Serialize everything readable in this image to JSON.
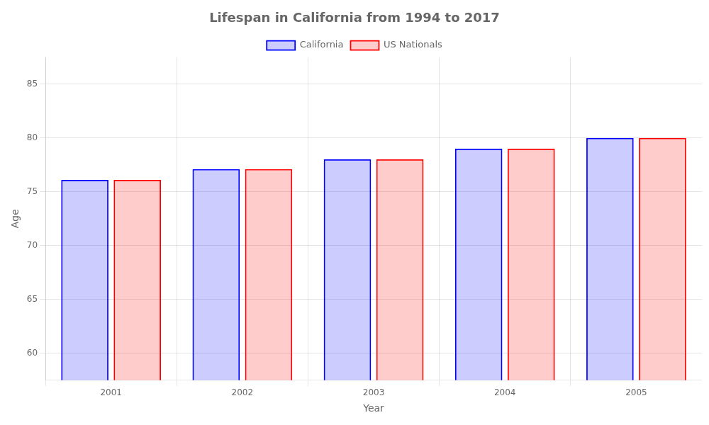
{
  "chart_data": {
    "type": "bar",
    "title": "Lifespan in California from 1994 to 2017",
    "x_label": "Year",
    "y_label": "Age",
    "categories": [
      "2001",
      "2002",
      "2003",
      "2004",
      "2005"
    ],
    "series": [
      {
        "name": "California",
        "color": "#0000ff",
        "values": [
          76.1,
          77.1,
          78.0,
          79.0,
          80.0
        ]
      },
      {
        "name": "US Nationals",
        "color": "#ff0000",
        "values": [
          76.1,
          77.1,
          78.0,
          79.0,
          80.0
        ]
      }
    ],
    "ylim": [
      57.5,
      87.5
    ],
    "yticks": [
      60,
      65,
      70,
      75,
      80,
      85
    ],
    "grid": true,
    "legend": "top"
  }
}
